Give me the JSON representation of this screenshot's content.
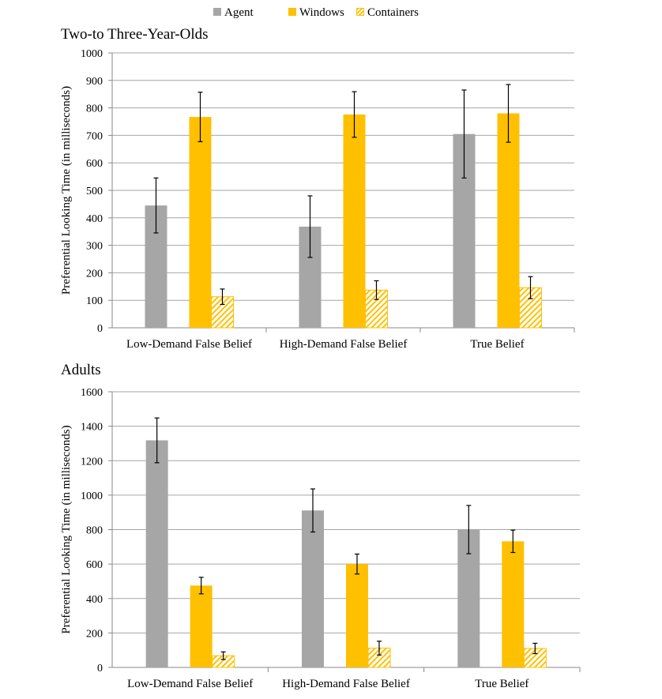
{
  "legend": {
    "agent": "Agent",
    "windows": "Windows",
    "containers": "Containers"
  },
  "colors": {
    "agent": "#a6a6a6",
    "windows": "#ffc000",
    "containers_hatch": "#ffc000",
    "grid": "#a6a6a6",
    "error_bar": "#000000"
  },
  "chart_data": [
    {
      "type": "bar",
      "title": "Two-to Three-Year-Olds",
      "ylabel": "Preferential Looking Time (in milliseconds)",
      "xlabel": "",
      "ylim": [
        0,
        1000
      ],
      "yticks": [
        0,
        100,
        200,
        300,
        400,
        500,
        600,
        700,
        800,
        900,
        1000
      ],
      "grid": true,
      "legend_position": "top",
      "categories": [
        "Low-Demand False Belief",
        "High-Demand False Belief",
        "True Belief"
      ],
      "series": [
        {
          "name": "Agent",
          "values": [
            445,
            368,
            705
          ],
          "error": [
            100,
            112,
            160
          ]
        },
        {
          "name": "Windows",
          "values": [
            767,
            776,
            780
          ],
          "error": [
            90,
            83,
            105
          ]
        },
        {
          "name": "Containers",
          "values": [
            113,
            137,
            146
          ],
          "error": [
            28,
            34,
            40
          ]
        }
      ]
    },
    {
      "type": "bar",
      "title": "Adults",
      "ylabel": "Preferential Looking Time (in milliseconds)",
      "xlabel": "",
      "ylim": [
        0,
        1600
      ],
      "yticks": [
        0,
        200,
        400,
        600,
        800,
        1000,
        1200,
        1400,
        1600
      ],
      "grid": true,
      "legend_position": "top",
      "categories": [
        "Low-Demand False Belief",
        "High-Demand False Belief",
        "True Belief"
      ],
      "series": [
        {
          "name": "Agent",
          "values": [
            1318,
            911,
            800
          ],
          "error": [
            130,
            125,
            140
          ]
        },
        {
          "name": "Windows",
          "values": [
            475,
            600,
            732
          ],
          "error": [
            48,
            58,
            65
          ]
        },
        {
          "name": "Containers",
          "values": [
            68,
            112,
            110
          ],
          "error": [
            22,
            40,
            30
          ]
        }
      ]
    }
  ]
}
